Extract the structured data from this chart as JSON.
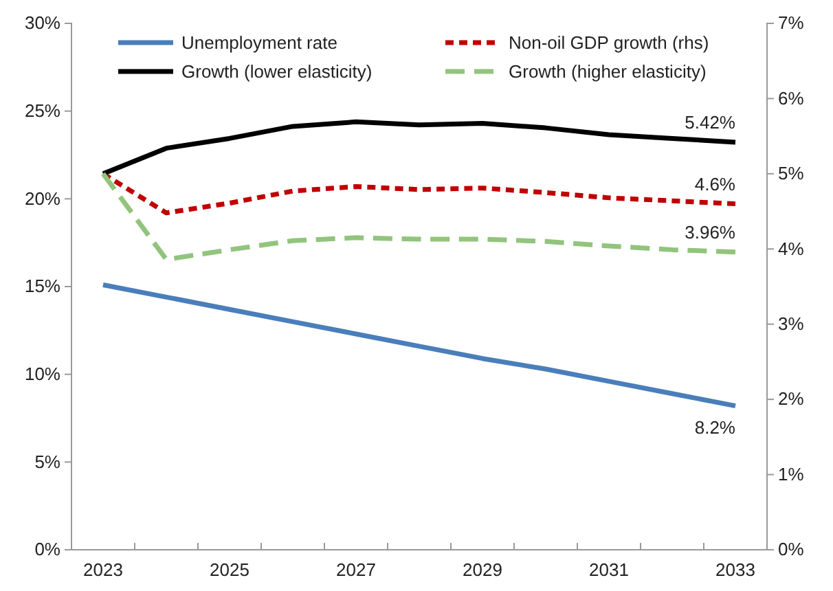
{
  "chart_data": {
    "type": "line",
    "categories": [
      "2023",
      null,
      "2025",
      null,
      "2027",
      null,
      "2029",
      null,
      "2031",
      null,
      "2033"
    ],
    "ylim": [
      0,
      0.3
    ],
    "yticks": [
      {
        "value": 0,
        "label": "0%"
      },
      {
        "value": 0.05,
        "label": "5%"
      },
      {
        "value": 0.1,
        "label": "10%"
      },
      {
        "value": 0.15,
        "label": "15%"
      },
      {
        "value": 0.2,
        "label": "20%"
      },
      {
        "value": 0.25,
        "label": "25%"
      },
      {
        "value": 0.3,
        "label": "30%"
      }
    ],
    "y2lim": [
      0,
      0.07
    ],
    "y2ticks": [
      {
        "value": 0,
        "label": "0%"
      },
      {
        "value": 0.01,
        "label": "1%"
      },
      {
        "value": 0.02,
        "label": "2%"
      },
      {
        "value": 0.03,
        "label": "3%"
      },
      {
        "value": 0.04,
        "label": "4%"
      },
      {
        "value": 0.05,
        "label": "5%"
      },
      {
        "value": 0.06,
        "label": "6%"
      },
      {
        "value": 0.07,
        "label": "7%"
      }
    ],
    "legend": "top",
    "grid": false,
    "series": [
      {
        "name": "Unemployment rate",
        "color": "#4a7ebb",
        "line_style": "solid",
        "values": [
          0.151,
          0.144,
          0.137,
          0.13,
          0.123,
          0.116,
          0.109,
          0.103,
          0.096,
          0.089,
          0.082
        ],
        "value_labels": [
          null,
          null,
          null,
          null,
          null,
          null,
          null,
          null,
          null,
          null,
          "8.2%"
        ]
      },
      {
        "name": "Non-oil GDP growth (rhs)",
        "color": "#c00000",
        "line_style": "dotted",
        "axis": "y2",
        "values": [
          0.05,
          0.0448,
          0.0461,
          0.0477,
          0.0483,
          0.0479,
          0.0481,
          0.0475,
          0.0468,
          0.0464,
          0.046
        ],
        "value_labels": [
          null,
          null,
          null,
          null,
          null,
          null,
          null,
          null,
          null,
          null,
          "4.6%"
        ]
      },
      {
        "name": "Growth (lower elasticity)",
        "color": "#000000",
        "line_style": "solid",
        "axis": "y2",
        "values": [
          0.05,
          0.0534,
          0.0547,
          0.0563,
          0.0569,
          0.0565,
          0.0567,
          0.0561,
          0.0552,
          0.0547,
          0.0542
        ],
        "value_labels": [
          null,
          null,
          null,
          null,
          null,
          null,
          null,
          null,
          null,
          null,
          "5.42%"
        ]
      },
      {
        "name": "Growth (higher elasticity)",
        "color": "#92c47d",
        "line_style": "dashed",
        "axis": "y2",
        "values": [
          0.05,
          0.0386,
          0.0399,
          0.0411,
          0.0415,
          0.0413,
          0.0413,
          0.041,
          0.0404,
          0.0399,
          0.0396
        ],
        "value_labels": [
          null,
          null,
          null,
          null,
          null,
          null,
          null,
          null,
          null,
          null,
          "3.96%"
        ]
      }
    ]
  }
}
